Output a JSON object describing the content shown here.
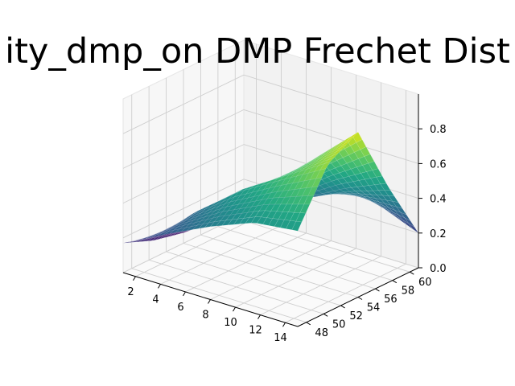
{
  "title": "ity_dmp_on DMP Frechet Dist",
  "chart_data": {
    "type": "surface3d",
    "title": "ity_dmp_on DMP Frechet Dist",
    "colormap": "viridis",
    "xlabel": "",
    "ylabel": "",
    "zlabel": "",
    "x_ticks": [
      2,
      4,
      6,
      8,
      10,
      12,
      14
    ],
    "y_ticks": [
      48,
      50,
      52,
      54,
      56,
      58,
      60
    ],
    "z_ticks": [
      "0.0",
      "0.2",
      "0.4",
      "0.6",
      "0.8"
    ],
    "xlim": [
      1,
      15
    ],
    "ylim": [
      47,
      61
    ],
    "zlim": [
      0,
      1.0
    ],
    "x": [
      1,
      4.5,
      8,
      11.5,
      15
    ],
    "y": [
      47,
      50.5,
      54,
      57.5,
      61
    ],
    "z": [
      [
        0.17,
        0.3,
        0.42,
        0.52,
        0.55
      ],
      [
        0.1,
        0.35,
        0.55,
        0.7,
        0.85
      ],
      [
        0.06,
        0.25,
        0.47,
        0.72,
        0.95
      ],
      [
        0.04,
        0.18,
        0.32,
        0.45,
        0.55
      ],
      [
        0.0,
        0.22,
        0.35,
        0.3,
        0.2
      ]
    ],
    "grid": true
  }
}
